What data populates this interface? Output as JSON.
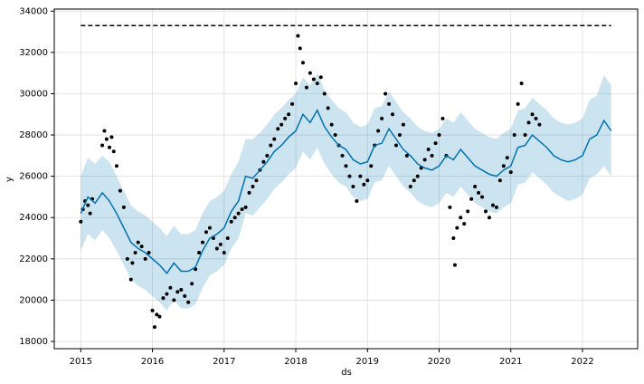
{
  "chart_data": {
    "type": "forecast",
    "xlabel": "ds",
    "ylabel": "y",
    "xlim": [
      2014.63,
      2022.77
    ],
    "ylim": [
      17650,
      34100
    ],
    "xticks": [
      2015,
      2016,
      2017,
      2018,
      2019,
      2020,
      2021,
      2022
    ],
    "yticks": [
      18000,
      20000,
      22000,
      24000,
      26000,
      28000,
      30000,
      32000,
      34000
    ],
    "grid": true,
    "forecast": {
      "color": "#0072b2",
      "band_color": "#0072b2",
      "x": [
        2015.0,
        2015.1,
        2015.2,
        2015.3,
        2015.4,
        2015.5,
        2015.6,
        2015.7,
        2015.8,
        2015.9,
        2016.0,
        2016.1,
        2016.2,
        2016.3,
        2016.4,
        2016.5,
        2016.6,
        2016.7,
        2016.8,
        2016.9,
        2017.0,
        2017.1,
        2017.2,
        2017.3,
        2017.4,
        2017.5,
        2017.6,
        2017.7,
        2017.8,
        2017.9,
        2018.0,
        2018.1,
        2018.2,
        2018.3,
        2018.4,
        2018.5,
        2018.6,
        2018.7,
        2018.8,
        2018.9,
        2019.0,
        2019.1,
        2019.2,
        2019.3,
        2019.4,
        2019.5,
        2019.6,
        2019.7,
        2019.8,
        2019.9,
        2020.0,
        2020.1,
        2020.2,
        2020.3,
        2020.4,
        2020.5,
        2020.6,
        2020.7,
        2020.8,
        2020.9,
        2021.0,
        2021.1,
        2021.2,
        2021.3,
        2021.4,
        2021.5,
        2021.6,
        2021.7,
        2021.8,
        2021.9,
        2022.0,
        2022.1,
        2022.2,
        2022.3,
        2022.4
      ],
      "values": [
        24200,
        25000,
        24700,
        25200,
        24800,
        24200,
        23500,
        22800,
        22500,
        22300,
        22000,
        21700,
        21300,
        21800,
        21400,
        21400,
        21600,
        22400,
        23000,
        23200,
        23500,
        24300,
        24800,
        26000,
        25900,
        26300,
        26700,
        27200,
        27500,
        27900,
        28200,
        29000,
        28600,
        29200,
        28400,
        27900,
        27500,
        27300,
        26800,
        26600,
        26700,
        27500,
        27600,
        28300,
        27800,
        27300,
        27000,
        26600,
        26400,
        26300,
        26500,
        27000,
        26800,
        27300,
        26900,
        26500,
        26300,
        26100,
        26000,
        26300,
        26500,
        27400,
        27500,
        28000,
        27700,
        27400,
        27000,
        26800,
        26700,
        26800,
        27000,
        27800,
        28000,
        28700,
        28200
      ],
      "upper": [
        26000,
        26900,
        26600,
        27000,
        26700,
        26000,
        25300,
        24600,
        24300,
        24100,
        23800,
        23500,
        23100,
        23600,
        23200,
        23200,
        23400,
        24200,
        24800,
        25000,
        25300,
        26100,
        26700,
        27800,
        27800,
        28100,
        28500,
        29000,
        29300,
        29700,
        30000,
        30800,
        30400,
        31000,
        30200,
        29700,
        29300,
        29100,
        28600,
        28400,
        28500,
        29300,
        29400,
        30100,
        29600,
        29100,
        28800,
        28400,
        28200,
        28100,
        28300,
        28800,
        28600,
        29100,
        28700,
        28300,
        28100,
        27900,
        27800,
        28100,
        28300,
        29200,
        29300,
        29800,
        29500,
        29200,
        28800,
        28600,
        28500,
        28600,
        28800,
        29700,
        29900,
        30900,
        30400
      ],
      "lower": [
        22400,
        23200,
        22900,
        23400,
        23000,
        22400,
        21700,
        21000,
        20700,
        20500,
        20200,
        19900,
        19500,
        20000,
        19600,
        19600,
        19800,
        20600,
        21200,
        21400,
        21700,
        22500,
        23000,
        24200,
        24100,
        24500,
        24900,
        25400,
        25700,
        26100,
        26400,
        27200,
        26800,
        27400,
        26600,
        26100,
        25700,
        25500,
        25000,
        24800,
        24900,
        25700,
        25800,
        26500,
        26000,
        25500,
        25200,
        24800,
        24600,
        24500,
        24700,
        25200,
        25000,
        25500,
        25100,
        24700,
        24500,
        24300,
        24200,
        24500,
        24700,
        25600,
        25700,
        26200,
        25900,
        25600,
        25200,
        25000,
        24800,
        24900,
        25100,
        25900,
        26100,
        26500,
        26000
      ]
    },
    "observed": {
      "color": "#000000",
      "x": [
        2015.0,
        2015.03,
        2015.06,
        2015.1,
        2015.13,
        2015.16,
        2015.3,
        2015.33,
        2015.36,
        2015.4,
        2015.43,
        2015.46,
        2015.5,
        2015.55,
        2015.6,
        2015.65,
        2015.7,
        2015.72,
        2015.76,
        2015.8,
        2015.85,
        2015.9,
        2015.95,
        2016.0,
        2016.03,
        2016.06,
        2016.1,
        2016.15,
        2016.2,
        2016.25,
        2016.3,
        2016.35,
        2016.4,
        2016.45,
        2016.5,
        2016.55,
        2016.6,
        2016.65,
        2016.7,
        2016.75,
        2016.8,
        2016.85,
        2016.9,
        2016.95,
        2017.0,
        2017.05,
        2017.1,
        2017.15,
        2017.2,
        2017.25,
        2017.3,
        2017.35,
        2017.4,
        2017.45,
        2017.5,
        2017.55,
        2017.6,
        2017.65,
        2017.7,
        2017.75,
        2017.8,
        2017.85,
        2017.9,
        2017.95,
        2018.0,
        2018.03,
        2018.06,
        2018.1,
        2018.15,
        2018.2,
        2018.25,
        2018.3,
        2018.35,
        2018.4,
        2018.45,
        2018.5,
        2018.55,
        2018.6,
        2018.65,
        2018.7,
        2018.75,
        2018.8,
        2018.85,
        2018.9,
        2018.95,
        2019.0,
        2019.05,
        2019.1,
        2019.15,
        2019.2,
        2019.25,
        2019.3,
        2019.35,
        2019.4,
        2019.45,
        2019.5,
        2019.55,
        2019.6,
        2019.65,
        2019.7,
        2019.75,
        2019.8,
        2019.85,
        2019.9,
        2019.95,
        2020.0,
        2020.05,
        2020.1,
        2020.15,
        2020.2,
        2020.22,
        2020.25,
        2020.3,
        2020.35,
        2020.4,
        2020.45,
        2020.5,
        2020.55,
        2020.6,
        2020.65,
        2020.7,
        2020.75,
        2020.8,
        2020.85,
        2020.9,
        2020.95,
        2021.0,
        2021.05,
        2021.1,
        2021.15,
        2021.2,
        2021.25,
        2021.3,
        2021.35,
        2021.4
      ],
      "values": [
        23800,
        24400,
        24800,
        24600,
        24200,
        24900,
        27500,
        28200,
        27800,
        27400,
        27900,
        27200,
        26500,
        25300,
        24500,
        22000,
        21000,
        21800,
        22300,
        22800,
        22600,
        22000,
        22300,
        19500,
        18700,
        19300,
        19200,
        20100,
        20300,
        20600,
        20000,
        20400,
        20500,
        20200,
        19900,
        20800,
        21500,
        22300,
        22800,
        23300,
        23500,
        23000,
        22500,
        22700,
        22300,
        23000,
        23800,
        24000,
        24200,
        24400,
        24500,
        25200,
        25500,
        25800,
        26300,
        26700,
        27000,
        27500,
        27800,
        28300,
        28500,
        28800,
        29000,
        29500,
        30500,
        32800,
        32200,
        31500,
        30300,
        31000,
        30700,
        30500,
        30800,
        30000,
        29300,
        28500,
        28000,
        27500,
        27000,
        26500,
        26000,
        25500,
        24800,
        26000,
        25600,
        25800,
        26500,
        27500,
        28200,
        28800,
        30000,
        29500,
        29000,
        27500,
        28000,
        28500,
        27000,
        25500,
        25800,
        26000,
        26400,
        26800,
        27300,
        27000,
        27600,
        28000,
        28800,
        27000,
        24500,
        23000,
        21700,
        23500,
        24000,
        23700,
        24300,
        24900,
        25500,
        25200,
        25000,
        24300,
        24000,
        24600,
        24500,
        25800,
        26500,
        26900,
        26200,
        28000,
        29500,
        30500,
        28000,
        28600,
        29000,
        28800,
        28500
      ]
    },
    "cap": {
      "color": "#000000",
      "x": [
        2015.0,
        2022.4
      ],
      "values": [
        33300,
        33300
      ]
    }
  }
}
